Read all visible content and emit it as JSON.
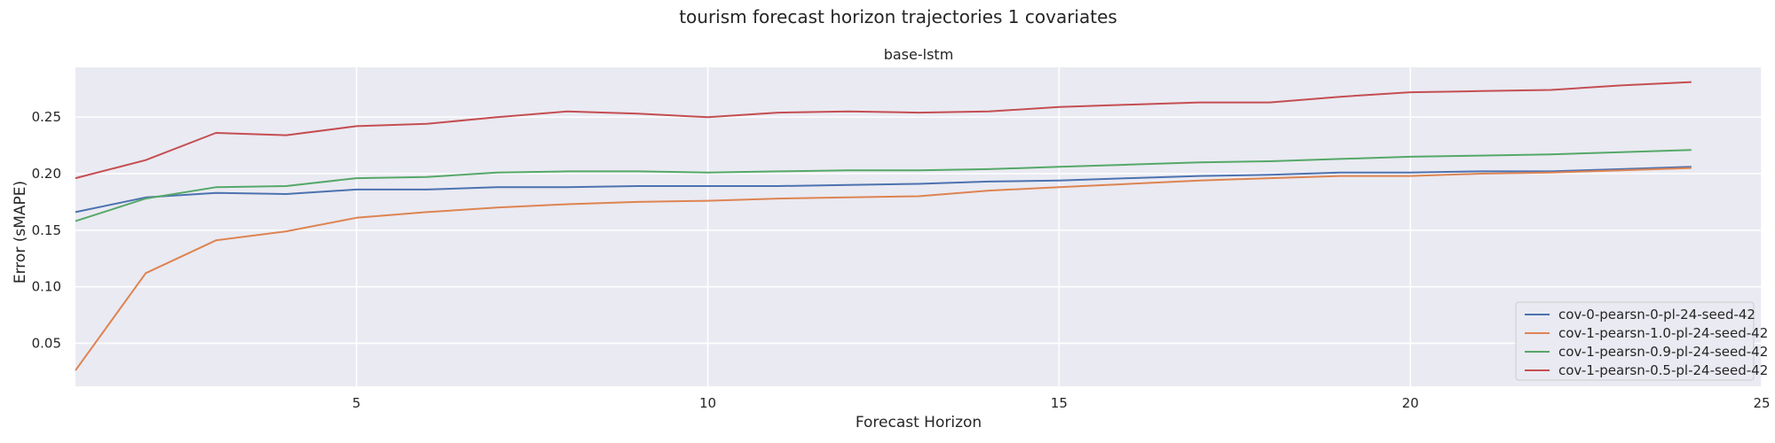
{
  "chart_data": {
    "type": "line",
    "title": "tourism forecast horizon trajectories 1 covariates",
    "subtitle": "base-lstm",
    "xlabel": "Forecast Horizon",
    "ylabel": "Error (sMAPE)",
    "xlim": [
      1,
      25
    ],
    "ylim": [
      0.012,
      0.294
    ],
    "xticks": [
      5,
      10,
      15,
      20,
      25
    ],
    "yticks": [
      0.05,
      0.1,
      0.15,
      0.2,
      0.25
    ],
    "xtick_labels": [
      "5",
      "10",
      "15",
      "20",
      "25"
    ],
    "ytick_labels": [
      "0.05",
      "0.10",
      "0.15",
      "0.20",
      "0.25"
    ],
    "grid": true,
    "legend_position": "lower-right",
    "background_color": "#eaeaf2",
    "x": [
      1,
      2,
      3,
      4,
      5,
      6,
      7,
      8,
      9,
      10,
      11,
      12,
      13,
      14,
      15,
      16,
      17,
      18,
      19,
      20,
      21,
      22,
      23,
      24
    ],
    "series": [
      {
        "name": "cov-0-pearsn-0-pl-24-seed-42",
        "color": "#4c72b0",
        "values": [
          0.166,
          0.179,
          0.183,
          0.182,
          0.186,
          0.186,
          0.188,
          0.188,
          0.189,
          0.189,
          0.189,
          0.19,
          0.191,
          0.193,
          0.194,
          0.196,
          0.198,
          0.199,
          0.201,
          0.201,
          0.202,
          0.202,
          0.204,
          0.206
        ]
      },
      {
        "name": "cov-1-pearsn-1.0-pl-24-seed-42",
        "color": "#dd8452",
        "values": [
          0.026,
          0.112,
          0.141,
          0.149,
          0.161,
          0.166,
          0.17,
          0.173,
          0.175,
          0.176,
          0.178,
          0.179,
          0.18,
          0.185,
          0.188,
          0.191,
          0.194,
          0.196,
          0.198,
          0.198,
          0.2,
          0.201,
          0.203,
          0.205
        ]
      },
      {
        "name": "cov-1-pearsn-0.9-pl-24-seed-42",
        "color": "#55a868",
        "values": [
          0.158,
          0.178,
          0.188,
          0.189,
          0.196,
          0.197,
          0.201,
          0.202,
          0.202,
          0.201,
          0.202,
          0.203,
          0.203,
          0.204,
          0.206,
          0.208,
          0.21,
          0.211,
          0.213,
          0.215,
          0.216,
          0.217,
          0.219,
          0.221
        ]
      },
      {
        "name": "cov-1-pearsn-0.5-pl-24-seed-42",
        "color": "#c44e52",
        "values": [
          0.196,
          0.212,
          0.236,
          0.234,
          0.242,
          0.244,
          0.25,
          0.255,
          0.253,
          0.25,
          0.254,
          0.255,
          0.254,
          0.255,
          0.259,
          0.261,
          0.263,
          0.263,
          0.268,
          0.272,
          0.273,
          0.274,
          0.278,
          0.281
        ]
      }
    ]
  }
}
